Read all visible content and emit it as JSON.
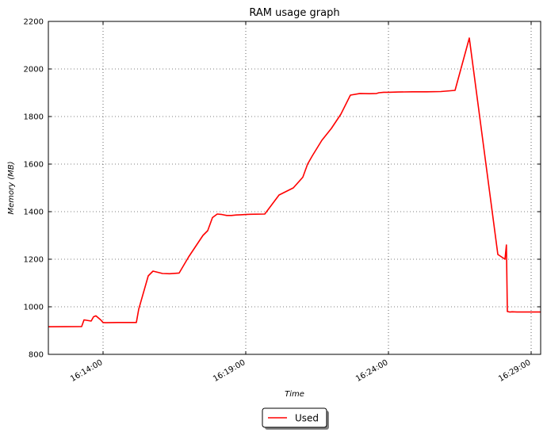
{
  "chart_data": {
    "type": "line",
    "title": "RAM usage graph",
    "xlabel": "Time",
    "ylabel": "Memory (MB)",
    "ylim": [
      800,
      2200
    ],
    "xlim": [
      "16:12:05",
      "16:29:20"
    ],
    "grid": true,
    "legend_position": "bottom-center",
    "x_ticks": [
      "16:14:00",
      "16:19:00",
      "16:24:00",
      "16:29:00"
    ],
    "y_ticks": [
      800,
      1000,
      1200,
      1400,
      1600,
      1800,
      2000,
      2200
    ],
    "series": [
      {
        "name": "Used",
        "color": "#ff0000",
        "x": [
          "16:12:05",
          "16:13:15",
          "16:13:20",
          "16:13:35",
          "16:13:40",
          "16:13:45",
          "16:13:55",
          "16:14:00",
          "16:14:05",
          "16:14:30",
          "16:15:10",
          "16:15:15",
          "16:15:25",
          "16:15:35",
          "16:15:45",
          "16:15:55",
          "16:16:05",
          "16:16:20",
          "16:16:40",
          "16:17:00",
          "16:17:20",
          "16:17:30",
          "16:17:40",
          "16:17:50",
          "16:18:00",
          "16:18:10",
          "16:18:20",
          "16:18:30",
          "16:18:40",
          "16:18:50",
          "16:19:00",
          "16:19:10",
          "16:19:40",
          "16:20:10",
          "16:20:40",
          "16:21:00",
          "16:21:10",
          "16:21:20",
          "16:21:40",
          "16:22:00",
          "16:22:20",
          "16:22:40",
          "16:23:00",
          "16:23:20",
          "16:23:35",
          "16:23:40",
          "16:23:50",
          "16:24:00",
          "16:24:20",
          "16:24:50",
          "16:25:20",
          "16:25:50",
          "16:26:20",
          "16:26:50",
          "16:27:50",
          "16:28:05",
          "16:28:08",
          "16:28:10",
          "16:28:13",
          "16:28:15",
          "16:28:16",
          "16:28:20",
          "16:28:30",
          "16:29:00",
          "16:29:20"
        ],
        "values": [
          916,
          917,
          945,
          940,
          958,
          962,
          945,
          934,
          933,
          934,
          934,
          990,
          1060,
          1130,
          1150,
          1145,
          1140,
          1139,
          1142,
          1210,
          1270,
          1300,
          1320,
          1375,
          1390,
          1388,
          1384,
          1384,
          1386,
          1387,
          1388,
          1389,
          1390,
          1470,
          1500,
          1545,
          1600,
          1635,
          1700,
          1750,
          1810,
          1890,
          1897,
          1896,
          1897,
          1900,
          1902,
          1902,
          1903,
          1904,
          1904,
          1905,
          1910,
          2130,
          1220,
          1200,
          1260,
          980,
          979,
          978,
          978,
          979,
          978,
          978,
          978
        ]
      }
    ]
  }
}
